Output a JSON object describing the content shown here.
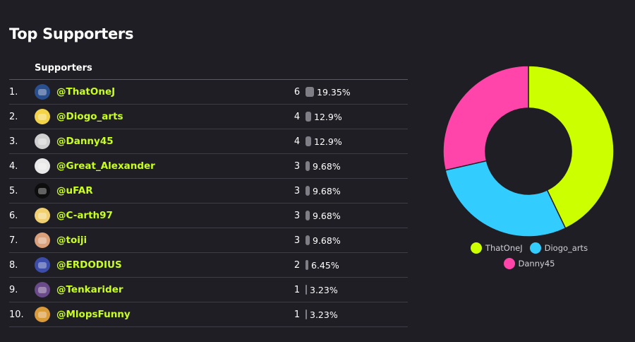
{
  "title": "Top Supporters",
  "table": {
    "column_header": "Supporters",
    "rows": [
      {
        "rank": "1.",
        "name": "@ThatOneJ",
        "count": "6",
        "percent": "19.35%",
        "pct_value": 19.35,
        "avatar_color": "#2a4f8f"
      },
      {
        "rank": "2.",
        "name": "@Diogo_arts",
        "count": "4",
        "percent": "12.9%",
        "pct_value": 12.9,
        "avatar_color": "#f2d34a"
      },
      {
        "rank": "3.",
        "name": "@Danny45",
        "count": "4",
        "percent": "12.9%",
        "pct_value": 12.9,
        "avatar_color": "#cfcfcf"
      },
      {
        "rank": "4.",
        "name": "@Great_Alexander",
        "count": "3",
        "percent": "9.68%",
        "pct_value": 9.68,
        "avatar_color": "#e9e9e9"
      },
      {
        "rank": "5.",
        "name": "@uFAR",
        "count": "3",
        "percent": "9.68%",
        "pct_value": 9.68,
        "avatar_color": "#0d0d0d"
      },
      {
        "rank": "6.",
        "name": "@C-arth97",
        "count": "3",
        "percent": "9.68%",
        "pct_value": 9.68,
        "avatar_color": "#f0d070"
      },
      {
        "rank": "7.",
        "name": "@toiji",
        "count": "3",
        "percent": "9.68%",
        "pct_value": 9.68,
        "avatar_color": "#d9a07a"
      },
      {
        "rank": "8.",
        "name": "@ERDODIUS",
        "count": "2",
        "percent": "6.45%",
        "pct_value": 6.45,
        "avatar_color": "#3b4da8"
      },
      {
        "rank": "9.",
        "name": "@Tenkarider",
        "count": "1",
        "percent": "3.23%",
        "pct_value": 3.23,
        "avatar_color": "#6a4a8a"
      },
      {
        "rank": "10.",
        "name": "@MlopsFunny",
        "count": "1",
        "percent": "3.23%",
        "pct_value": 3.23,
        "avatar_color": "#d99a3a"
      }
    ]
  },
  "chart_data": {
    "type": "pie",
    "donut": true,
    "categories": [
      "ThatOneJ",
      "Diogo_arts",
      "Danny45"
    ],
    "values": [
      6,
      4,
      4
    ],
    "colors": [
      "#ccff00",
      "#33ccff",
      "#ff44aa"
    ],
    "legend": [
      "ThatOneJ",
      "Diogo_arts",
      "Danny45"
    ],
    "legend_placement": "bottom"
  },
  "colors": {
    "background": "#1f1e24",
    "accent_name": "#c9ff1c",
    "bar": "#7f7e87"
  }
}
